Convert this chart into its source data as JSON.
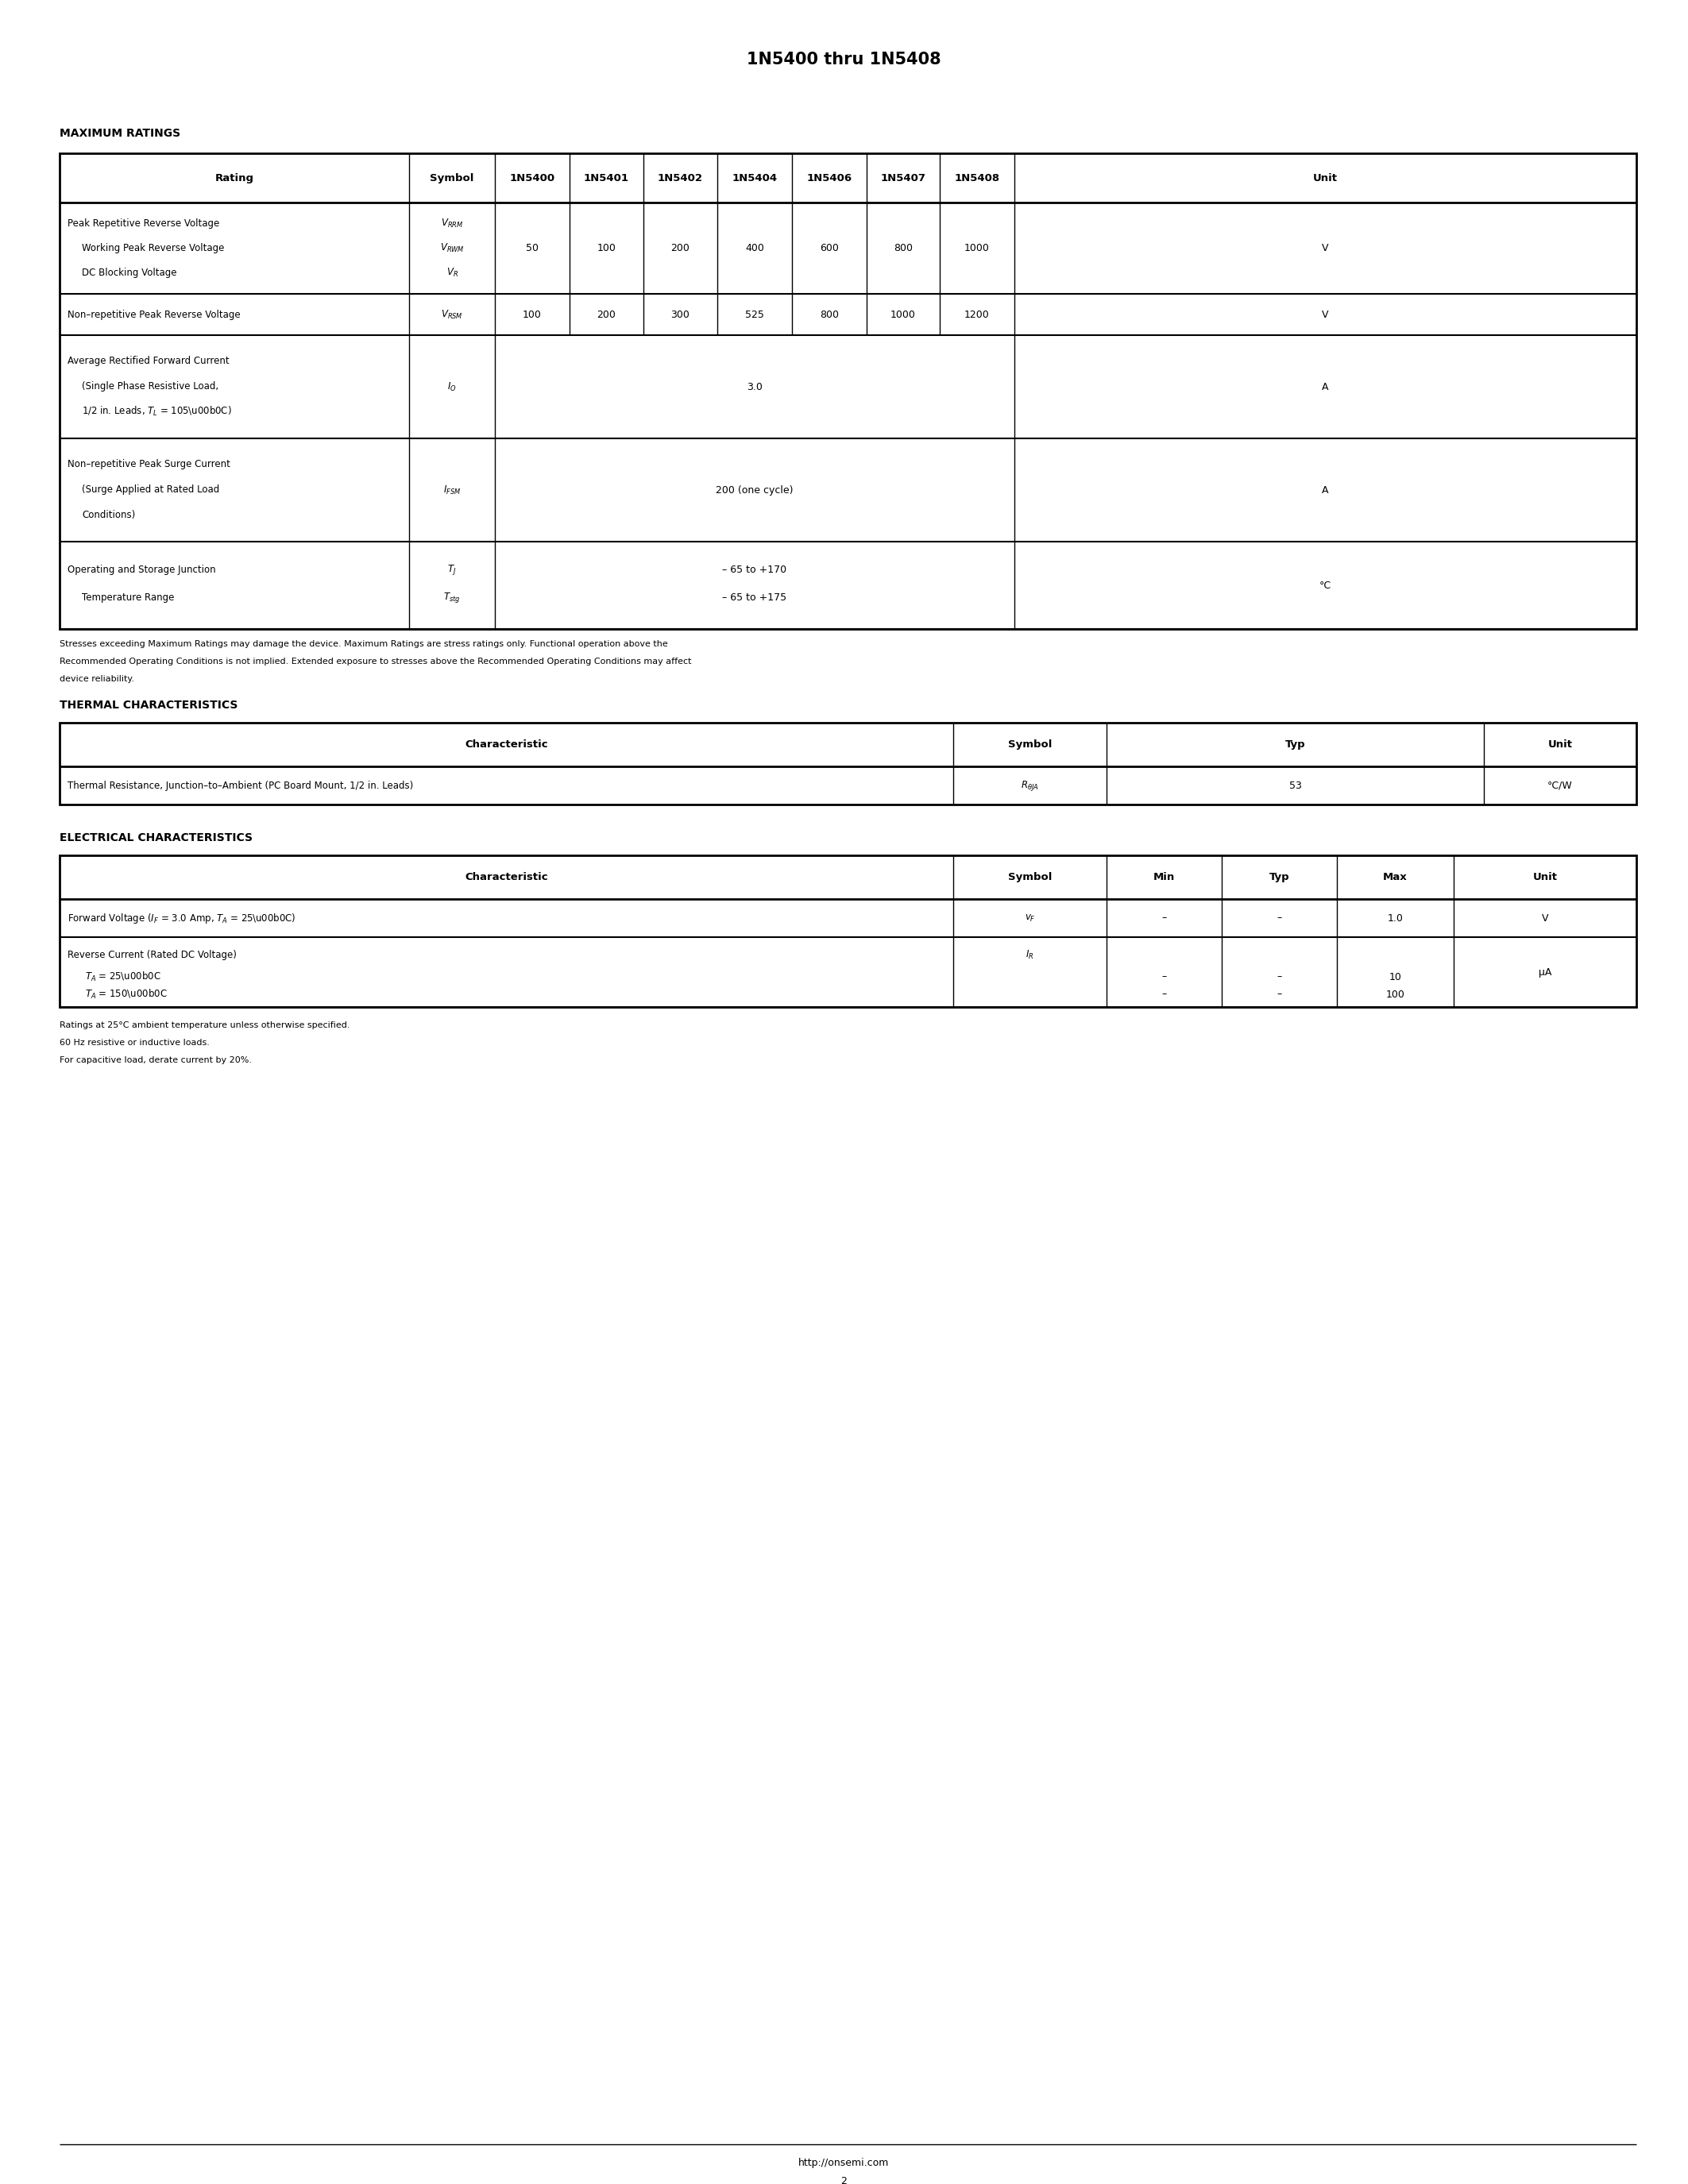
{
  "title": "1N5400 thru 1N5408",
  "page_num": "2",
  "footer_url": "http://onsemi.com",
  "bg_color": "#ffffff",
  "section1_heading": "MAXIMUM RATINGS",
  "section2_heading": "THERMAL CHARACTERISTICS",
  "section3_heading": "ELECTRICAL CHARACTERISTICS",
  "max_ratings_header": [
    "Rating",
    "Symbol",
    "1N5400",
    "1N5401",
    "1N5402",
    "1N5404",
    "1N5406",
    "1N5407",
    "1N5408",
    "Unit"
  ],
  "stress_note1": "Stresses exceeding Maximum Ratings may damage the device. Maximum Ratings are stress ratings only. Functional operation above the",
  "stress_note2": "Recommended Operating Conditions is not implied. Extended exposure to stresses above the Recommended Operating Conditions may affect",
  "stress_note3": "device reliability.",
  "thermal_header": [
    "Characteristic",
    "Symbol",
    "Typ",
    "Unit"
  ],
  "thermal_char": "Thermal Resistance, Junction–to–Ambient (PC Board Mount, 1/2 in. Leads)",
  "thermal_symbol": "RθJA",
  "thermal_typ": "53",
  "thermal_unit": "°C/W",
  "elec_header": [
    "Characteristic",
    "Symbol",
    "Min",
    "Typ",
    "Max",
    "Unit"
  ],
  "elec_note1": "Ratings at 25°C ambient temperature unless otherwise specified.",
  "elec_note2": "60 Hz resistive or inductive loads.",
  "elec_note3": "For capacitive load, derate current by 20%."
}
